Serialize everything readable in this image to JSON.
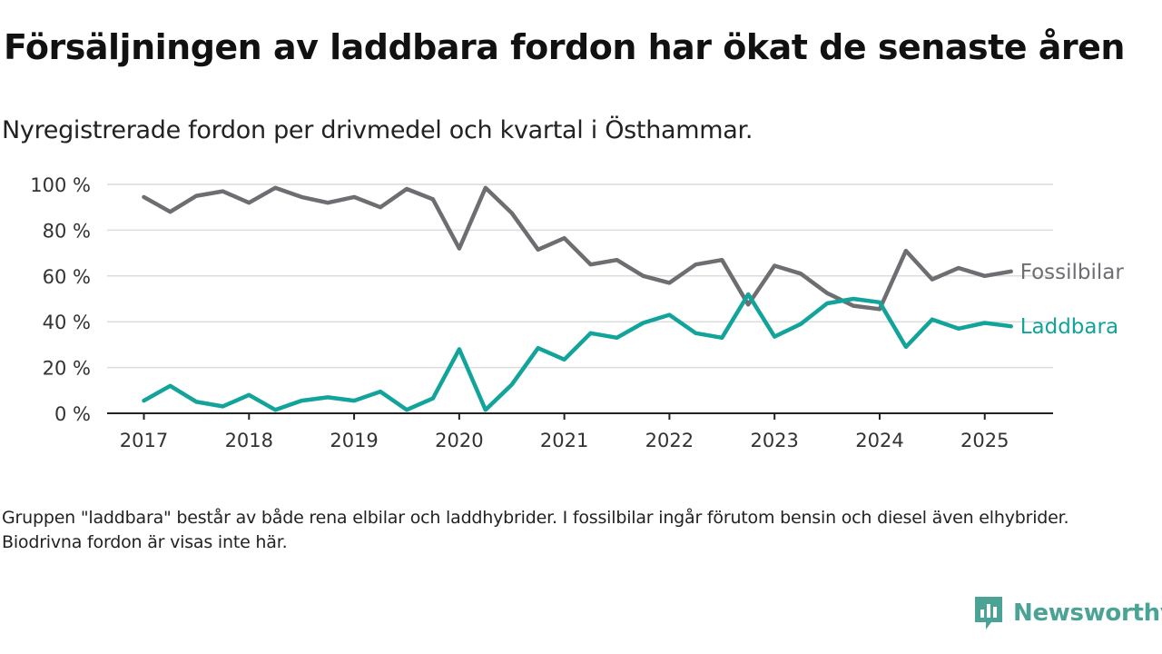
{
  "title": "Försäljningen av laddbara fordon har ökat de senaste åren",
  "subtitle": "Nyregistrerade fordon per drivmedel och kvartal i Östhammar.",
  "footnote": "Gruppen \"laddbara\" består av både rena elbilar och laddhybrider. I fossilbilar ingår förutom bensin och diesel även elhybrider. Biodrivna fordon är visas inte här.",
  "logo": {
    "text": "Newsworthy",
    "icon": "newsworthy-chart-icon",
    "color": "#4aa394"
  },
  "chart_data": {
    "type": "line",
    "ylim": [
      0,
      100
    ],
    "yticks": [
      "0 %",
      "20 %",
      "40 %",
      "60 %",
      "80 %",
      "100 %"
    ],
    "ytick_values": [
      0,
      20,
      40,
      60,
      80,
      100
    ],
    "xlim": [
      2016.65,
      2025.65
    ],
    "xticks": [
      "2017",
      "2018",
      "2019",
      "2020",
      "2021",
      "2022",
      "2023",
      "2024",
      "2025"
    ],
    "xtick_values": [
      2017,
      2018,
      2019,
      2020,
      2021,
      2022,
      2023,
      2024,
      2025
    ],
    "grid": true,
    "x": [
      "2017 Q1",
      "2017 Q2",
      "2017 Q3",
      "2017 Q4",
      "2018 Q1",
      "2018 Q2",
      "2018 Q3",
      "2018 Q4",
      "2019 Q1",
      "2019 Q2",
      "2019 Q3",
      "2019 Q4",
      "2020 Q1",
      "2020 Q2",
      "2020 Q3",
      "2020 Q4",
      "2021 Q1",
      "2021 Q2",
      "2021 Q3",
      "2021 Q4",
      "2022 Q1",
      "2022 Q2",
      "2022 Q3",
      "2022 Q4",
      "2023 Q1",
      "2023 Q2",
      "2023 Q3",
      "2023 Q4",
      "2024 Q1",
      "2024 Q2",
      "2024 Q3",
      "2024 Q4",
      "2025 Q1",
      "2025 Q2"
    ],
    "series": [
      {
        "name": "Fossilbilar",
        "color": "#6e6d72",
        "values": [
          94.5,
          88,
          95,
          97,
          92,
          98.5,
          94.5,
          92,
          94.5,
          90,
          98,
          93.5,
          72,
          98.5,
          87.5,
          71.5,
          76.5,
          65,
          67,
          60,
          57,
          65,
          67,
          47.5,
          64.5,
          61,
          52.5,
          47,
          45.5,
          71,
          58.5,
          63.5,
          60,
          62
        ]
      },
      {
        "name": "Laddbara",
        "color": "#12a39a",
        "values": [
          5.5,
          12,
          5,
          3,
          8,
          1.5,
          5.5,
          7,
          5.5,
          9.5,
          1.5,
          6.5,
          28,
          1.5,
          12.5,
          28.5,
          23.5,
          35,
          33,
          39.5,
          43,
          35,
          33,
          52,
          33.5,
          39,
          48,
          50,
          48.5,
          29,
          41,
          37,
          39.5,
          38
        ]
      }
    ]
  }
}
